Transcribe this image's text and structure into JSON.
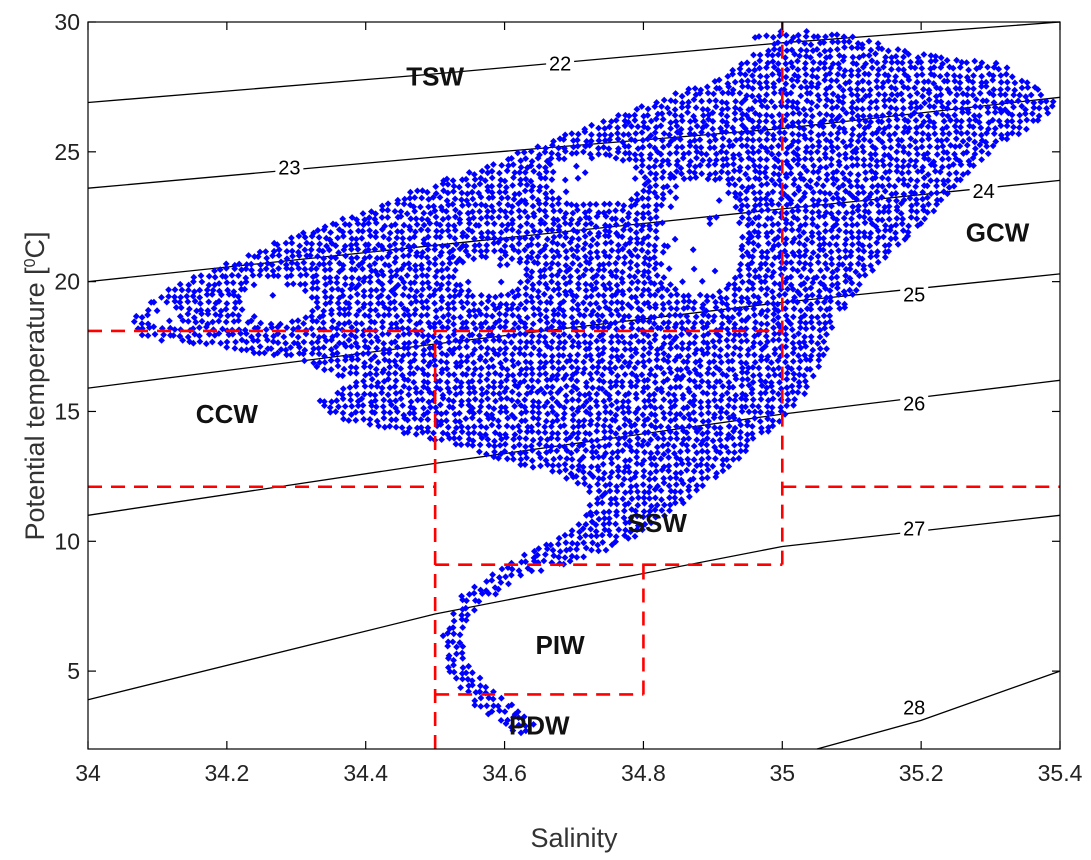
{
  "chart_data": {
    "type": "scatter",
    "title": "",
    "xlabel": "Salinity",
    "ylabel": "Potential temperature [",
    "ylabel_unit": "C]",
    "ylabel_superscript": "0",
    "xlim": [
      34,
      35.4
    ],
    "ylim": [
      2,
      30
    ],
    "xticks": [
      "34",
      "34.2",
      "34.4",
      "34.6",
      "34.8",
      "35",
      "35.2",
      "35.4"
    ],
    "yticks": [
      "5",
      "10",
      "15",
      "20",
      "25",
      "30"
    ],
    "grid": false,
    "legend": "none",
    "colors": {
      "points": "#0000ff",
      "boxes": "#ff0000",
      "contours": "#000000"
    },
    "density_contours": [
      {
        "label": "22",
        "points": [
          [
            34.0,
            26.9
          ],
          [
            34.5,
            28.0
          ],
          [
            35.0,
            29.2
          ],
          [
            35.4,
            30.0
          ]
        ],
        "label_at": [
          34.68,
          28.4
        ]
      },
      {
        "label": "23",
        "points": [
          [
            34.0,
            23.6
          ],
          [
            34.5,
            24.8
          ],
          [
            35.0,
            25.9
          ],
          [
            35.4,
            27.1
          ]
        ],
        "label_at": [
          34.29,
          24.4
        ]
      },
      {
        "label": "24",
        "points": [
          [
            34.0,
            20.0
          ],
          [
            34.5,
            21.4
          ],
          [
            35.0,
            22.8
          ],
          [
            35.4,
            23.9
          ]
        ],
        "label_at": [
          35.29,
          23.5
        ]
      },
      {
        "label": "25",
        "points": [
          [
            34.0,
            15.9
          ],
          [
            34.5,
            17.6
          ],
          [
            35.0,
            19.2
          ],
          [
            35.4,
            20.3
          ]
        ],
        "label_at": [
          35.19,
          19.5
        ]
      },
      {
        "label": "26",
        "points": [
          [
            34.0,
            11.0
          ],
          [
            34.5,
            13.0
          ],
          [
            35.0,
            14.9
          ],
          [
            35.4,
            16.2
          ]
        ],
        "label_at": [
          35.19,
          15.3
        ]
      },
      {
        "label": "27",
        "points": [
          [
            34.0,
            3.9
          ],
          [
            34.5,
            7.2
          ],
          [
            35.0,
            9.8
          ],
          [
            35.4,
            11.0
          ]
        ],
        "label_at": [
          35.19,
          10.5
        ]
      },
      {
        "label": "28",
        "points": [
          [
            35.05,
            2.0
          ],
          [
            35.2,
            3.1
          ],
          [
            35.4,
            5.0
          ]
        ],
        "label_at": [
          35.19,
          3.6
        ]
      }
    ],
    "region_boundaries": [
      [
        [
          34.0,
          18.1
        ],
        [
          35.0,
          18.1
        ]
      ],
      [
        [
          34.0,
          12.1
        ],
        [
          34.5,
          12.1
        ]
      ],
      [
        [
          35.0,
          12.1
        ],
        [
          35.4,
          12.1
        ]
      ],
      [
        [
          34.5,
          2.0
        ],
        [
          34.5,
          18.1
        ]
      ],
      [
        [
          35.0,
          9.1
        ],
        [
          35.0,
          30.0
        ]
      ],
      [
        [
          34.5,
          9.1
        ],
        [
          35.0,
          9.1
        ]
      ],
      [
        [
          34.5,
          4.1
        ],
        [
          34.8,
          4.1
        ]
      ],
      [
        [
          34.8,
          4.1
        ],
        [
          34.8,
          9.1
        ]
      ]
    ],
    "regions": [
      {
        "label": "TSW",
        "at": [
          34.5,
          27.9
        ]
      },
      {
        "label": "GCW",
        "at": [
          35.31,
          21.9
        ]
      },
      {
        "label": "CCW",
        "at": [
          34.2,
          14.9
        ]
      },
      {
        "label": "SSW",
        "at": [
          34.82,
          10.7
        ]
      },
      {
        "label": "PIW",
        "at": [
          34.68,
          6.0
        ]
      },
      {
        "label": "PDW",
        "at": [
          34.65,
          2.9
        ]
      }
    ],
    "data_envelope": [
      [
        34.62,
        2.5
      ],
      [
        34.56,
        3.6
      ],
      [
        34.52,
        4.8
      ],
      [
        34.51,
        6.3
      ],
      [
        34.54,
        8.0
      ],
      [
        34.63,
        9.5
      ],
      [
        34.71,
        10.8
      ],
      [
        34.73,
        11.8
      ],
      [
        34.67,
        12.6
      ],
      [
        34.56,
        13.4
      ],
      [
        34.45,
        14.2
      ],
      [
        34.35,
        14.8
      ],
      [
        34.33,
        15.4
      ],
      [
        34.38,
        16.1
      ],
      [
        34.3,
        17.0
      ],
      [
        34.18,
        17.5
      ],
      [
        34.08,
        17.8
      ],
      [
        34.06,
        18.6
      ],
      [
        34.12,
        19.8
      ],
      [
        34.25,
        21.3
      ],
      [
        34.42,
        23.0
      ],
      [
        34.6,
        24.8
      ],
      [
        34.78,
        26.6
      ],
      [
        34.92,
        28.0
      ],
      [
        34.98,
        29.2
      ],
      [
        34.92,
        29.6
      ],
      [
        35.05,
        29.7
      ],
      [
        35.1,
        29.5
      ],
      [
        35.2,
        28.8
      ],
      [
        35.32,
        28.4
      ],
      [
        35.4,
        26.8
      ],
      [
        35.38,
        26.4
      ],
      [
        35.3,
        24.9
      ],
      [
        35.25,
        23.6
      ],
      [
        35.19,
        21.9
      ],
      [
        35.12,
        20.1
      ],
      [
        35.08,
        18.6
      ],
      [
        35.06,
        17.1
      ],
      [
        35.03,
        15.5
      ],
      [
        34.98,
        14.1
      ],
      [
        34.92,
        12.8
      ],
      [
        34.85,
        11.2
      ],
      [
        34.76,
        9.7
      ],
      [
        34.62,
        8.6
      ],
      [
        34.55,
        7.2
      ],
      [
        34.54,
        5.6
      ],
      [
        34.58,
        4.3
      ],
      [
        34.65,
        3.0
      ]
    ],
    "data_holes": [
      {
        "center": [
          34.88,
          21.7
        ],
        "rx": 0.06,
        "ry": 2.3
      },
      {
        "center": [
          34.73,
          23.9
        ],
        "rx": 0.07,
        "ry": 0.9
      },
      {
        "center": [
          34.27,
          19.2
        ],
        "rx": 0.05,
        "ry": 0.8
      },
      {
        "center": [
          34.58,
          20.2
        ],
        "rx": 0.05,
        "ry": 0.7
      },
      {
        "center": [
          34.11,
          18.7
        ],
        "rx": 0.02,
        "ry": 0.5
      }
    ]
  }
}
